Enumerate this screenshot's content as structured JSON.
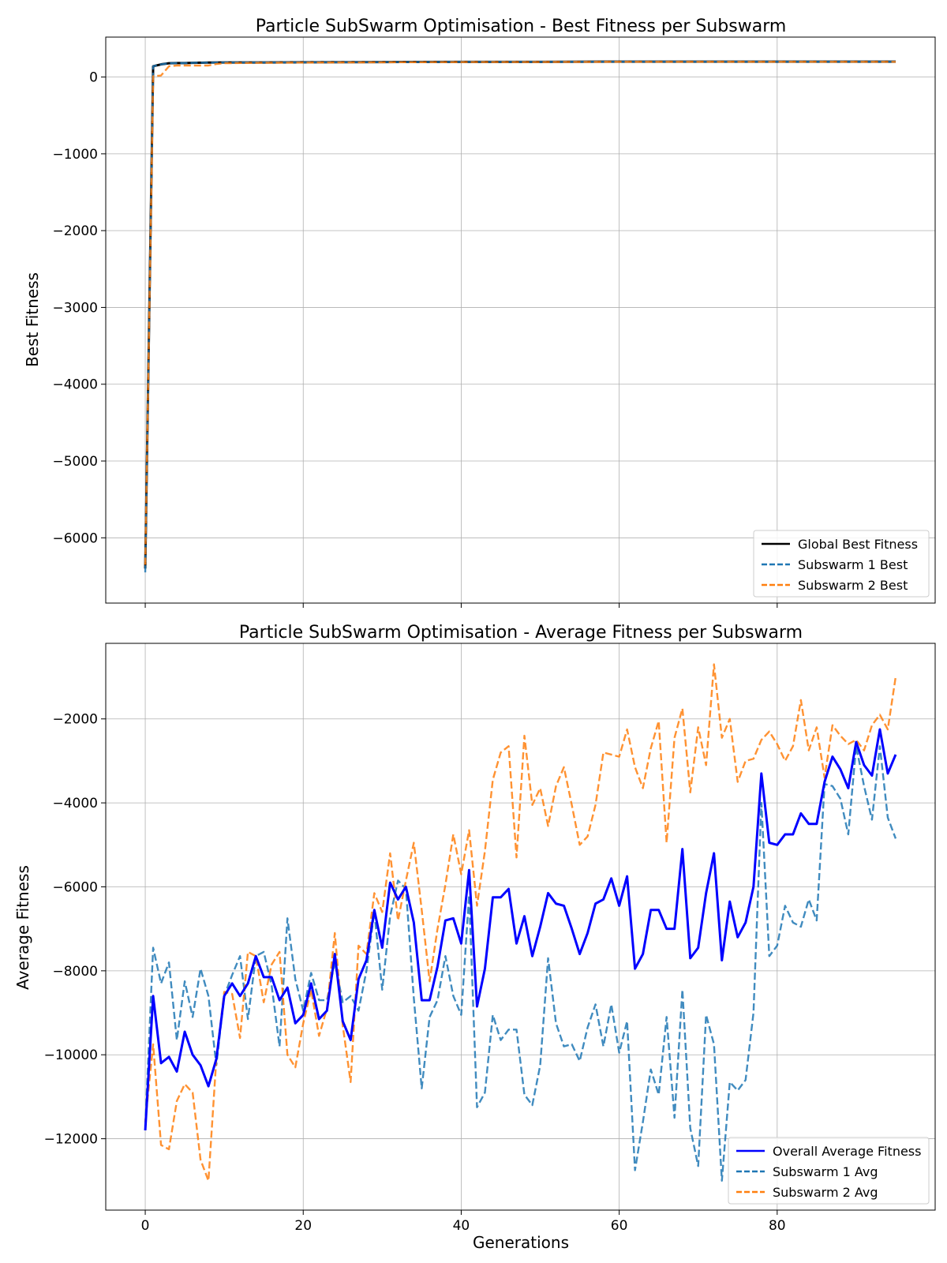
{
  "chart_data": [
    {
      "type": "line",
      "title": "Particle SubSwarm Optimisation - Best Fitness per Subswarm",
      "xlabel": "",
      "ylabel": "Best Fitness",
      "xlim": [
        -5,
        100
      ],
      "ylim": [
        -6850,
        520
      ],
      "x_ticks": [
        0,
        20,
        40,
        60,
        80
      ],
      "x_tick_labels_visible": false,
      "y_ticks": [
        0,
        -1000,
        -2000,
        -3000,
        -4000,
        -5000,
        -6000
      ],
      "y_tick_labels": [
        "0",
        "−1000",
        "−2000",
        "−3000",
        "−4000",
        "−5000",
        "−6000"
      ],
      "grid": true,
      "legend_position": "lower right",
      "series": [
        {
          "name": "Global Best Fitness",
          "color": "#000000",
          "style": "solid",
          "x": [
            0,
            1,
            2,
            3,
            4,
            5,
            6,
            8,
            10,
            15,
            20,
            30,
            40,
            50,
            60,
            70,
            80,
            90,
            95
          ],
          "y": [
            -6400,
            140,
            165,
            180,
            182,
            182,
            185,
            188,
            190,
            190,
            192,
            195,
            198,
            198,
            200,
            200,
            200,
            200,
            200
          ]
        },
        {
          "name": "Subswarm 1 Best",
          "color": "#1f77b4",
          "style": "dashed",
          "x": [
            0,
            1,
            2,
            3,
            4,
            5,
            6,
            8,
            10,
            15,
            20,
            30,
            40,
            50,
            60,
            70,
            80,
            90,
            95
          ],
          "y": [
            -6450,
            140,
            165,
            180,
            182,
            182,
            185,
            188,
            190,
            190,
            192,
            195,
            198,
            198,
            200,
            200,
            200,
            200,
            200
          ]
        },
        {
          "name": "Subswarm 2 Best",
          "color": "#ff7f0e",
          "style": "dashed",
          "x": [
            0,
            1,
            2,
            3,
            4,
            5,
            6,
            7,
            8,
            9,
            10,
            15,
            20,
            30,
            40,
            50,
            60,
            70,
            80,
            90,
            95
          ],
          "y": [
            -6350,
            10,
            20,
            140,
            150,
            150,
            150,
            150,
            150,
            170,
            180,
            185,
            188,
            192,
            195,
            196,
            198,
            198,
            198,
            198,
            198
          ]
        }
      ]
    },
    {
      "type": "line",
      "title": "Particle SubSwarm Optimisation - Average Fitness per Subswarm",
      "xlabel": "Generations",
      "ylabel": "Average Fitness",
      "xlim": [
        -5,
        100
      ],
      "ylim": [
        -13700,
        -200
      ],
      "x_ticks": [
        0,
        20,
        40,
        60,
        80
      ],
      "x_tick_labels": [
        "0",
        "20",
        "40",
        "60",
        "80"
      ],
      "y_ticks": [
        -2000,
        -4000,
        -6000,
        -8000,
        -10000,
        -12000
      ],
      "y_tick_labels": [
        "−2000",
        "−4000",
        "−6000",
        "−8000",
        "−10000",
        "−12000"
      ],
      "grid": true,
      "legend_position": "lower right",
      "series": [
        {
          "name": "Overall Average Fitness",
          "color": "#0000ff",
          "style": "solid",
          "y": [
            -11800,
            -8600,
            -10200,
            -10050,
            -10400,
            -9450,
            -10000,
            -10250,
            -10750,
            -10100,
            -8600,
            -8300,
            -8600,
            -8300,
            -7650,
            -8150,
            -8150,
            -8700,
            -8400,
            -9250,
            -9050,
            -8300,
            -9150,
            -8950,
            -7600,
            -9200,
            -9650,
            -8200,
            -7750,
            -6550,
            -7450,
            -5900,
            -6300,
            -6000,
            -6850,
            -8700,
            -8700,
            -7900,
            -6800,
            -6750,
            -7350,
            -5600,
            -8850,
            -7950,
            -6250,
            -6250,
            -6050,
            -7350,
            -6700,
            -7650,
            -6950,
            -6150,
            -6400,
            -6450,
            -7000,
            -7600,
            -7100,
            -6400,
            -6300,
            -5800,
            -6450,
            -5750,
            -7950,
            -7600,
            -6550,
            -6550,
            -7000,
            -7000,
            -5100,
            -7700,
            -7450,
            -6150,
            -5200,
            -7750,
            -6350,
            -7200,
            -6850,
            -6000,
            -3300,
            -4950,
            -5000,
            -4750,
            -4750,
            -4250,
            -4500,
            -4500,
            -3500,
            -2900,
            -3200,
            -3650,
            -2550,
            -3100,
            -3350,
            -2250,
            -3300,
            -2850
          ]
        },
        {
          "name": "Subswarm 1 Avg",
          "color": "#1f77b4",
          "style": "dashed",
          "y": [
            -11700,
            -7450,
            -8300,
            -7800,
            -9650,
            -8250,
            -9100,
            -7950,
            -8600,
            -10250,
            -8600,
            -8100,
            -7650,
            -9150,
            -7650,
            -7550,
            -8350,
            -9800,
            -6750,
            -8200,
            -8950,
            -8050,
            -8700,
            -8700,
            -7800,
            -8750,
            -8600,
            -8950,
            -8000,
            -6600,
            -8450,
            -6700,
            -5850,
            -6050,
            -8650,
            -10800,
            -9100,
            -8700,
            -7650,
            -8600,
            -9050,
            -6200,
            -11250,
            -10900,
            -9050,
            -9650,
            -9400,
            -9400,
            -10950,
            -11200,
            -10250,
            -7700,
            -9250,
            -9800,
            -9750,
            -10150,
            -9350,
            -8800,
            -9800,
            -8800,
            -9950,
            -9200,
            -12750,
            -11600,
            -10350,
            -10950,
            -9100,
            -11500,
            -8450,
            -11750,
            -12650,
            -9050,
            -9750,
            -13000,
            -10650,
            -10850,
            -10600,
            -9000,
            -4000,
            -7650,
            -7400,
            -6450,
            -6850,
            -6950,
            -6300,
            -6800,
            -3550,
            -3600,
            -3900,
            -4750,
            -2650,
            -3600,
            -4400,
            -2650,
            -4350,
            -4850
          ]
        },
        {
          "name": "Subswarm 2 Avg",
          "color": "#ff7f0e",
          "style": "dashed",
          "y": [
            -11600,
            -9750,
            -12150,
            -12250,
            -11100,
            -10700,
            -10900,
            -12500,
            -13000,
            -10100,
            -8500,
            -8550,
            -9600,
            -7550,
            -7650,
            -8750,
            -7850,
            -7550,
            -10000,
            -10300,
            -9250,
            -8450,
            -9550,
            -8900,
            -7100,
            -9300,
            -10650,
            -7400,
            -7600,
            -6150,
            -6600,
            -5200,
            -6800,
            -5850,
            -4950,
            -6550,
            -8250,
            -7000,
            -5950,
            -4750,
            -5700,
            -4650,
            -6450,
            -5150,
            -3450,
            -2800,
            -2650,
            -5300,
            -2400,
            -4050,
            -3650,
            -4550,
            -3600,
            -3150,
            -4050,
            -5000,
            -4800,
            -4050,
            -2800,
            -2850,
            -2900,
            -2250,
            -3150,
            -3650,
            -2700,
            -2050,
            -4950,
            -2450,
            -1750,
            -3750,
            -2200,
            -3100,
            -700,
            -2450,
            -2000,
            -3500,
            -3000,
            -2950,
            -2500,
            -2300,
            -2600,
            -3000,
            -2650,
            -1550,
            -2750,
            -2200,
            -3400,
            -2150,
            -2400,
            -2600,
            -2500,
            -2750,
            -2150,
            -1900,
            -2250,
            -1000
          ]
        }
      ]
    }
  ]
}
